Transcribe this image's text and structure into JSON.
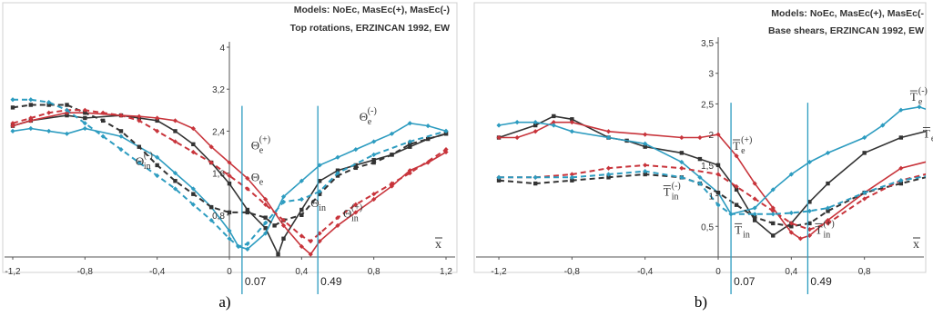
{
  "colors": {
    "black": "#333333",
    "red": "#c8343b",
    "blue": "#2d9cc0"
  },
  "chart_data": [
    {
      "type": "line",
      "caption": "a)",
      "title_lines": [
        "Models: NoEc, MasEc(+), MasEc(-)",
        "Top rotations, ERZINCAN 1992, EW"
      ],
      "xlabel": "x",
      "xlim": [
        -1.2,
        1.2
      ],
      "ylim": [
        0,
        4
      ],
      "x_ticks": [
        "-1,2",
        "-0,8",
        "-0,4",
        "0",
        "0,4",
        "0,8",
        "1,2"
      ],
      "x_tick_values": [
        -1.2,
        -0.8,
        -0.4,
        0,
        0.4,
        0.8,
        1.2
      ],
      "y_ticks": [
        "0",
        "0,8",
        "1,6",
        "2,4",
        "3,2",
        "4"
      ],
      "y_tick_values": [
        0,
        0.8,
        1.6,
        2.4,
        3.2,
        4
      ],
      "reference_lines": [
        {
          "x": 0.07,
          "label": "0.07"
        },
        {
          "x": 0.49,
          "label": "0.49"
        }
      ],
      "annotations": [
        {
          "base": "Θ",
          "sup": "(+)",
          "sub": "e",
          "x": 0.12,
          "y": 2.05
        },
        {
          "base": "Θ",
          "sup": "",
          "sub": "e",
          "x": 0.12,
          "y": 1.45
        },
        {
          "base": "Θ",
          "sup": "(-)",
          "sub": "e",
          "x": 0.72,
          "y": 2.6
        },
        {
          "base": "Θ",
          "sup": "(-)",
          "sub": "in",
          "x": -0.52,
          "y": 1.75
        },
        {
          "base": "Θ",
          "sup": "",
          "sub": "in",
          "x": 0.45,
          "y": 0.95
        },
        {
          "base": "Θ",
          "sup": "(+)",
          "sub": "in",
          "x": 0.63,
          "y": 0.75
        }
      ],
      "series": [
        {
          "color": "black",
          "dash": false,
          "marker": "square",
          "x": [
            -1.2,
            -1.1,
            -0.9,
            -0.8,
            -0.6,
            -0.5,
            -0.4,
            -0.3,
            -0.2,
            -0.1,
            0,
            0.1,
            0.2,
            0.27,
            0.3,
            0.4,
            0.5,
            0.6,
            0.7,
            0.8,
            0.9,
            1.0,
            1.1,
            1.2
          ],
          "y": [
            2.5,
            2.6,
            2.7,
            2.65,
            2.7,
            2.65,
            2.6,
            2.4,
            2.15,
            1.8,
            1.4,
            0.9,
            0.55,
            0.05,
            0.35,
            0.9,
            1.45,
            1.65,
            1.75,
            1.85,
            1.95,
            2.1,
            2.25,
            2.35
          ]
        },
        {
          "color": "red",
          "dash": false,
          "marker": "diamond",
          "x": [
            -1.2,
            -1.1,
            -0.9,
            -0.8,
            -0.6,
            -0.5,
            -0.4,
            -0.3,
            -0.2,
            -0.1,
            0,
            0.1,
            0.2,
            0.3,
            0.4,
            0.45,
            0.5,
            0.6,
            0.7,
            0.8,
            0.9,
            1.0,
            1.1,
            1.2
          ],
          "y": [
            2.5,
            2.6,
            2.75,
            2.75,
            2.7,
            2.68,
            2.65,
            2.6,
            2.45,
            2.1,
            1.8,
            1.5,
            1.1,
            0.6,
            0.2,
            0.05,
            0.3,
            0.6,
            0.85,
            1.1,
            1.35,
            1.65,
            1.8,
            2.0
          ]
        },
        {
          "color": "blue",
          "dash": false,
          "marker": "diamond",
          "x": [
            -1.2,
            -1.1,
            -1.0,
            -0.9,
            -0.8,
            -0.6,
            -0.4,
            -0.3,
            -0.2,
            -0.1,
            0,
            0.05,
            0.1,
            0.2,
            0.3,
            0.4,
            0.5,
            0.6,
            0.7,
            0.8,
            0.9,
            1.0,
            1.1,
            1.2
          ],
          "y": [
            2.4,
            2.45,
            2.4,
            2.35,
            2.45,
            2.3,
            1.9,
            1.6,
            1.3,
            0.95,
            0.5,
            0.2,
            0.15,
            0.45,
            1.15,
            1.45,
            1.75,
            1.9,
            2.05,
            2.2,
            2.35,
            2.55,
            2.5,
            2.4
          ]
        },
        {
          "color": "black",
          "dash": true,
          "marker": "square",
          "x": [
            -1.2,
            -1.1,
            -1.0,
            -0.9,
            -0.8,
            -0.7,
            -0.6,
            -0.5,
            -0.4,
            -0.3,
            -0.2,
            -0.1,
            0,
            0.1,
            0.2,
            0.25,
            0.3,
            0.4,
            0.5,
            0.6,
            0.7,
            0.8,
            0.9,
            1.0,
            1.2
          ],
          "y": [
            2.85,
            2.9,
            2.9,
            2.9,
            2.75,
            2.6,
            2.4,
            2.1,
            1.75,
            1.45,
            1.2,
            0.95,
            0.85,
            0.85,
            0.75,
            0.6,
            0.7,
            0.8,
            1.2,
            1.55,
            1.7,
            1.8,
            1.95,
            2.15,
            2.35
          ]
        },
        {
          "color": "red",
          "dash": true,
          "marker": "diamond",
          "x": [
            -1.2,
            -1.1,
            -1.0,
            -0.9,
            -0.8,
            -0.7,
            -0.6,
            -0.5,
            -0.4,
            -0.3,
            -0.2,
            -0.1,
            0,
            0.1,
            0.2,
            0.3,
            0.4,
            0.45,
            0.5,
            0.6,
            0.7,
            0.8,
            0.9,
            1.0,
            1.2
          ],
          "y": [
            2.55,
            2.65,
            2.75,
            2.8,
            2.8,
            2.75,
            2.7,
            2.6,
            2.4,
            2.2,
            2.0,
            1.8,
            1.55,
            1.3,
            1.0,
            0.7,
            0.4,
            0.3,
            0.45,
            0.75,
            1.0,
            1.2,
            1.4,
            1.6,
            2.05
          ]
        },
        {
          "color": "blue",
          "dash": true,
          "marker": "diamond",
          "x": [
            -1.2,
            -1.1,
            -1.0,
            -0.9,
            -0.8,
            -0.7,
            -0.6,
            -0.5,
            -0.4,
            -0.3,
            -0.2,
            -0.1,
            0,
            0.05,
            0.1,
            0.2,
            0.3,
            0.4,
            0.5,
            0.6,
            0.8,
            1.0,
            1.2
          ],
          "y": [
            3.0,
            3.0,
            2.95,
            2.8,
            2.55,
            2.3,
            2.05,
            1.8,
            1.55,
            1.3,
            1.0,
            0.7,
            0.35,
            0.2,
            0.25,
            0.65,
            1.05,
            1.1,
            1.25,
            1.6,
            1.95,
            2.2,
            2.4
          ]
        }
      ]
    },
    {
      "type": "line",
      "caption": "b)",
      "title_lines": [
        "Models: NoEc, MasEc(+), MasEc(-",
        "Base shears, ERZINCAN 1992, EW"
      ],
      "xlabel": "x",
      "xlim": [
        -1.25,
        1.2
      ],
      "ylim": [
        0,
        3.5
      ],
      "x_ticks": [
        "-1,2",
        "-0,8",
        "-0,4",
        "0",
        "0,4",
        "0,8"
      ],
      "x_tick_values": [
        -1.2,
        -0.8,
        -0.4,
        0,
        0.4,
        0.8
      ],
      "y_ticks": [
        "0",
        "0,5",
        "1",
        "1,5",
        "2",
        "2,5",
        "3",
        "3,5"
      ],
      "y_tick_values": [
        0,
        0.5,
        1,
        1.5,
        2,
        2.5,
        3,
        3.5
      ],
      "reference_lines": [
        {
          "x": 0.07,
          "label": "0.07"
        },
        {
          "x": 0.49,
          "label": "0.49"
        }
      ],
      "annotations": [
        {
          "base": "T",
          "sup": "(+)",
          "sub": "e",
          "x": 0.08,
          "y": 1.75
        },
        {
          "base": "T",
          "sup": "(-)",
          "sub": "e",
          "x": 1.05,
          "y": 2.55
        },
        {
          "base": "T",
          "sup": "",
          "sub": "e",
          "x": 1.12,
          "y": 1.95
        },
        {
          "base": "T",
          "sup": "(-)",
          "sub": "in",
          "x": -0.3,
          "y": 1.0
        },
        {
          "base": "T",
          "sup": "",
          "sub": "in",
          "x": 0.09,
          "y": 0.38
        },
        {
          "base": "T",
          "sup": "(+)",
          "sub": "in",
          "x": 0.53,
          "y": 0.38
        }
      ],
      "series": [
        {
          "color": "black",
          "dash": false,
          "marker": "square",
          "x": [
            -1.2,
            -1.0,
            -0.9,
            -0.8,
            -0.6,
            -0.5,
            -0.4,
            -0.2,
            -0.1,
            0,
            0.1,
            0.2,
            0.3,
            0.4,
            0.5,
            0.6,
            0.8,
            1.0,
            1.2
          ],
          "y": [
            1.95,
            2.15,
            2.3,
            2.25,
            1.95,
            1.9,
            1.8,
            1.7,
            1.6,
            1.5,
            1.1,
            0.6,
            0.35,
            0.55,
            0.9,
            1.2,
            1.7,
            1.95,
            2.1
          ]
        },
        {
          "color": "red",
          "dash": false,
          "marker": "diamond",
          "x": [
            -1.2,
            -1.1,
            -1.0,
            -0.9,
            -0.8,
            -0.6,
            -0.4,
            -0.2,
            -0.1,
            0,
            0.1,
            0.2,
            0.3,
            0.4,
            0.45,
            0.5,
            0.6,
            0.8,
            1.0,
            1.2
          ],
          "y": [
            1.95,
            1.95,
            2.05,
            2.2,
            2.2,
            2.05,
            2.0,
            1.95,
            1.95,
            2.0,
            1.65,
            1.2,
            0.8,
            0.4,
            0.3,
            0.35,
            0.6,
            1.05,
            1.45,
            1.6
          ]
        },
        {
          "color": "blue",
          "dash": false,
          "marker": "diamond",
          "x": [
            -1.2,
            -1.1,
            -1.0,
            -0.9,
            -0.8,
            -0.6,
            -0.4,
            -0.2,
            -0.1,
            0,
            0.07,
            0.2,
            0.3,
            0.4,
            0.5,
            0.6,
            0.8,
            0.9,
            1.0,
            1.1,
            1.2
          ],
          "y": [
            2.15,
            2.2,
            2.2,
            2.15,
            2.05,
            1.95,
            1.85,
            1.55,
            1.3,
            1.05,
            0.7,
            0.8,
            1.1,
            1.35,
            1.55,
            1.7,
            1.95,
            2.15,
            2.4,
            2.45,
            2.35
          ]
        },
        {
          "color": "black",
          "dash": true,
          "marker": "square",
          "x": [
            -1.2,
            -1.0,
            -0.8,
            -0.6,
            -0.4,
            -0.2,
            -0.1,
            0,
            0.1,
            0.2,
            0.3,
            0.4,
            0.5,
            0.6,
            0.8,
            1.0,
            1.2
          ],
          "y": [
            1.25,
            1.2,
            1.25,
            1.3,
            1.35,
            1.3,
            1.2,
            1.05,
            0.85,
            0.65,
            0.55,
            0.5,
            0.55,
            0.75,
            1.05,
            1.2,
            1.35
          ]
        },
        {
          "color": "red",
          "dash": true,
          "marker": "diamond",
          "x": [
            -1.2,
            -1.0,
            -0.8,
            -0.6,
            -0.4,
            -0.2,
            0,
            0.1,
            0.2,
            0.3,
            0.4,
            0.5,
            0.6,
            0.8,
            1.0,
            1.2
          ],
          "y": [
            1.3,
            1.3,
            1.35,
            1.45,
            1.5,
            1.45,
            1.35,
            1.15,
            0.95,
            0.75,
            0.55,
            0.45,
            0.55,
            0.95,
            1.25,
            1.4
          ]
        },
        {
          "color": "blue",
          "dash": true,
          "marker": "diamond",
          "x": [
            -1.2,
            -1.0,
            -0.8,
            -0.6,
            -0.4,
            -0.2,
            -0.1,
            0,
            0.07,
            0.2,
            0.3,
            0.4,
            0.5,
            0.6,
            0.8,
            1.0,
            1.2
          ],
          "y": [
            1.3,
            1.3,
            1.3,
            1.35,
            1.4,
            1.3,
            1.2,
            0.85,
            0.7,
            0.7,
            0.7,
            0.72,
            0.75,
            0.8,
            1.05,
            1.25,
            1.35
          ]
        }
      ]
    }
  ]
}
